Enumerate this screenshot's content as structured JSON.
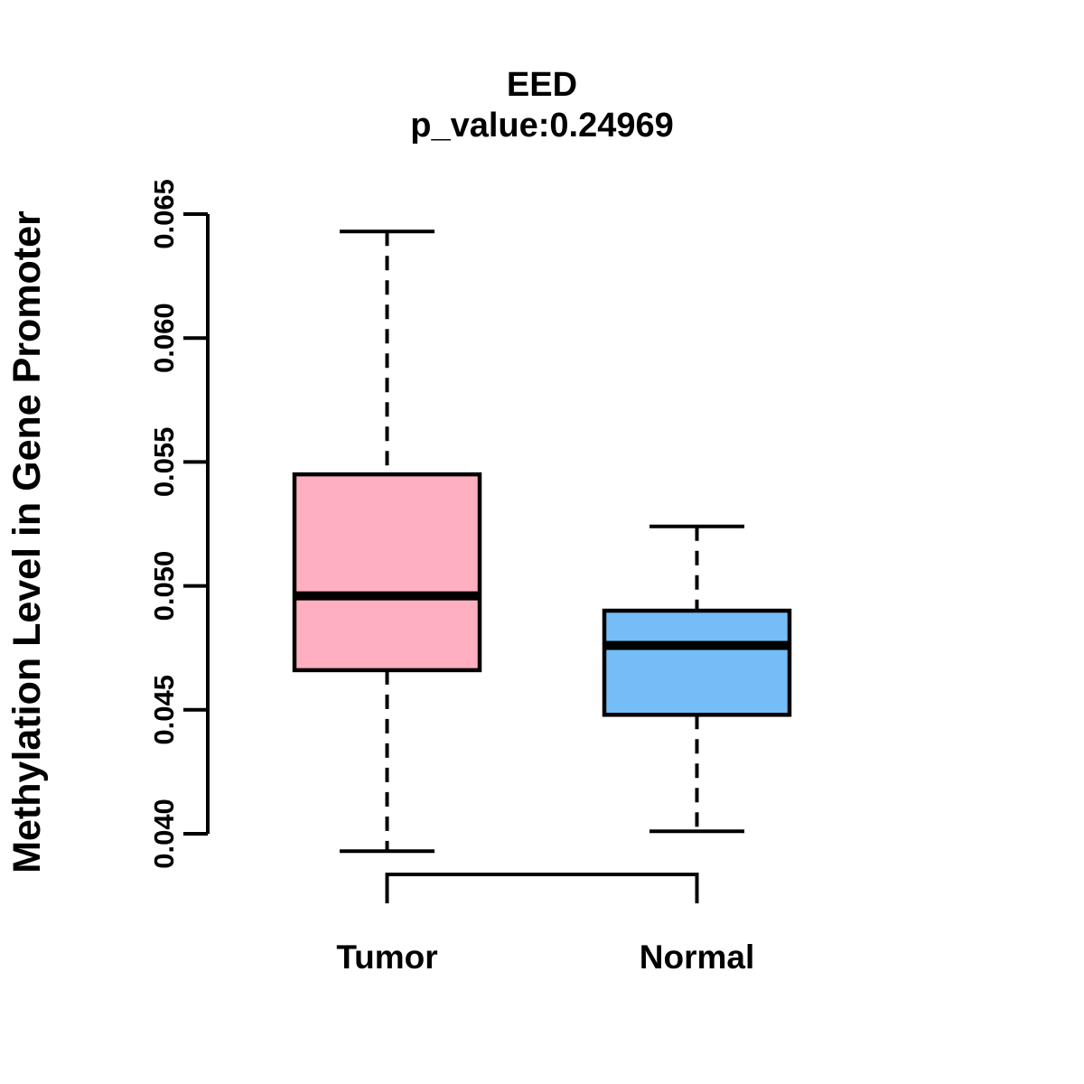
{
  "chart_data": {
    "type": "boxplot",
    "title": "EED",
    "subtitle": "p_value:0.24969",
    "ylabel": "Methylation Level in Gene Promoter",
    "xlabel": "",
    "categories": [
      "Tumor",
      "Normal"
    ],
    "ylim": [
      0.04,
      0.065
    ],
    "yticks": [
      0.04,
      0.045,
      0.05,
      0.055,
      0.06,
      0.065
    ],
    "ytick_labels": [
      "0.040",
      "0.045",
      "0.050",
      "0.055",
      "0.060",
      "0.065"
    ],
    "grid": "off",
    "legend": "none",
    "series": [
      {
        "name": "Tumor",
        "color": "#FFAFC0",
        "lower_whisker": 0.0393,
        "q1": 0.0466,
        "median": 0.0496,
        "q3": 0.0545,
        "upper_whisker": 0.0643
      },
      {
        "name": "Normal",
        "color": "#74BDF7",
        "lower_whisker": 0.0401,
        "q1": 0.0448,
        "median": 0.0476,
        "q3": 0.049,
        "upper_whisker": 0.0524
      }
    ],
    "colors": {
      "axis": "#000000",
      "text": "#000000",
      "tumor_fill": "#FFAFC0",
      "normal_fill": "#74BDF7",
      "background": "#FFFFFF"
    }
  }
}
